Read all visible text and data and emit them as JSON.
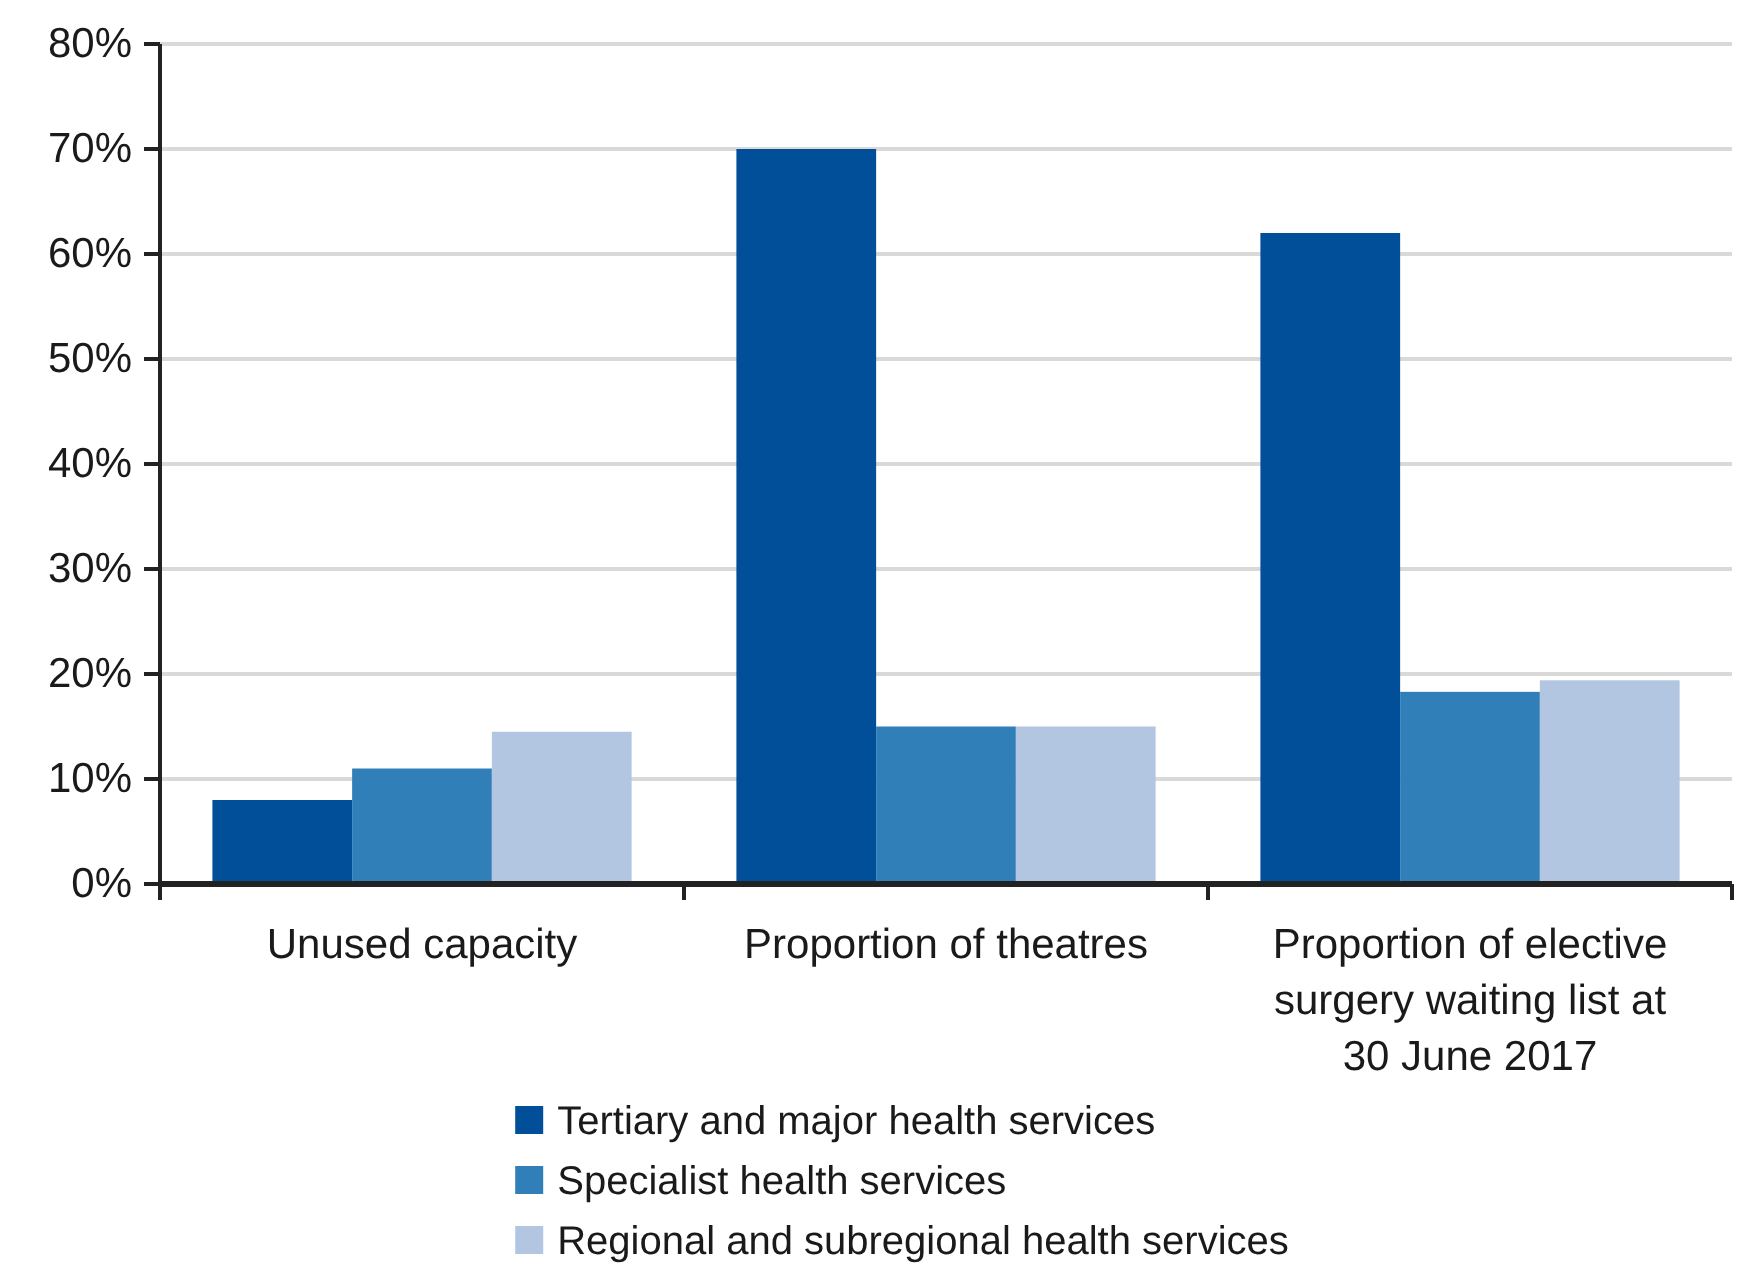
{
  "chart_data": {
    "type": "bar",
    "categories": [
      "Unused capacity",
      "Proportion of theatres",
      "Proportion of elective surgery waiting list at 30 June 2017"
    ],
    "series": [
      {
        "name": "Tertiary and major health services",
        "color": "#004f98",
        "values": [
          8.0,
          70,
          62
        ]
      },
      {
        "name": "Specialist health services",
        "color": "#317fb8",
        "values": [
          11.0,
          15,
          18.3
        ]
      },
      {
        "name": "Regional and subregional health services",
        "color": "#b2c6e1",
        "values": [
          14.5,
          15,
          19.4
        ]
      }
    ],
    "ylim": [
      0,
      80
    ],
    "yticks": [
      {
        "value": 0,
        "label": "0%"
      },
      {
        "value": 10,
        "label": "10%"
      },
      {
        "value": 20,
        "label": "20%"
      },
      {
        "value": 30,
        "label": "30%"
      },
      {
        "value": 40,
        "label": "40%"
      },
      {
        "value": 50,
        "label": "50%"
      },
      {
        "value": 60,
        "label": "60%"
      },
      {
        "value": 70,
        "label": "70%"
      },
      {
        "value": 80,
        "label": "80%"
      }
    ],
    "grid": "y",
    "legend": "bottom"
  }
}
